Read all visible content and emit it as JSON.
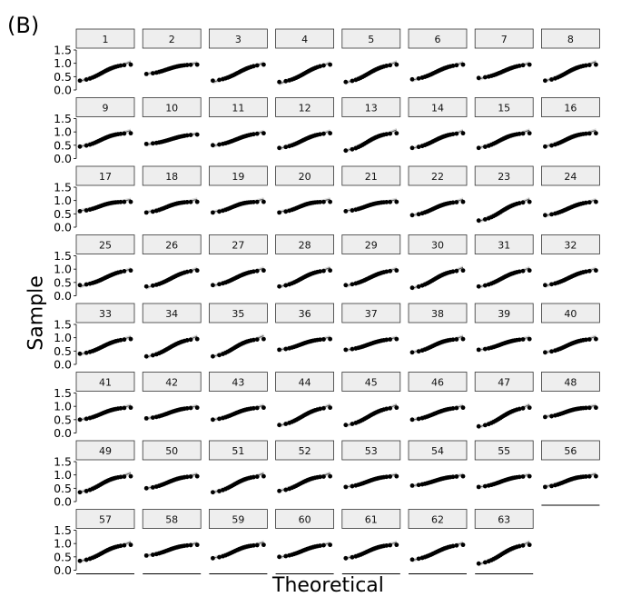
{
  "figure": {
    "panel_label": "(B)",
    "xlabel": "Theoretical",
    "ylabel": "Sample"
  },
  "chart_data": {
    "type": "scatter",
    "subtype": "faceted normal Q-Q plots with fitted reference line and confidence band",
    "facets": [
      "1",
      "2",
      "3",
      "4",
      "5",
      "6",
      "7",
      "8",
      "9",
      "10",
      "11",
      "12",
      "13",
      "14",
      "15",
      "16",
      "17",
      "18",
      "19",
      "20",
      "21",
      "22",
      "23",
      "24",
      "25",
      "26",
      "27",
      "28",
      "29",
      "30",
      "31",
      "32",
      "33",
      "34",
      "35",
      "36",
      "37",
      "38",
      "39",
      "40",
      "41",
      "42",
      "43",
      "44",
      "45",
      "46",
      "47",
      "48",
      "49",
      "50",
      "51",
      "52",
      "53",
      "54",
      "55",
      "56",
      "57",
      "58",
      "59",
      "60",
      "61",
      "62",
      "63"
    ],
    "xlabel": "Theoretical",
    "ylabel": "Sample",
    "ylim": [
      0.0,
      1.5
    ],
    "yticks": [
      0.0,
      0.5,
      1.0,
      1.5
    ],
    "ytick_labels": [
      "0.0",
      "0.5",
      "1.0",
      "1.5"
    ],
    "layout": {
      "columns": 8,
      "rows": 8
    },
    "point_color": "#000000",
    "line_color": "#555555",
    "band_color": "#bbbbbb",
    "strip_color": "#eeeeee",
    "series": [
      {
        "lo": 0.35,
        "hi": 0.95,
        "shape": 0.4
      },
      {
        "lo": 0.6,
        "hi": 0.95,
        "shape": 0.6
      },
      {
        "lo": 0.35,
        "hi": 0.95,
        "shape": 0.0
      },
      {
        "lo": 0.3,
        "hi": 0.95,
        "shape": 0.0
      },
      {
        "lo": 0.3,
        "hi": 0.95,
        "shape": 0.3
      },
      {
        "lo": 0.4,
        "hi": 0.95,
        "shape": 0.2
      },
      {
        "lo": 0.45,
        "hi": 0.95,
        "shape": 0.1
      },
      {
        "lo": 0.35,
        "hi": 0.95,
        "shape": 0.5
      },
      {
        "lo": 0.45,
        "hi": 0.95,
        "shape": 0.6
      },
      {
        "lo": 0.55,
        "hi": 0.9,
        "shape": 0.1
      },
      {
        "lo": 0.5,
        "hi": 0.95,
        "shape": 0.2
      },
      {
        "lo": 0.4,
        "hi": 0.95,
        "shape": 0.3
      },
      {
        "lo": 0.3,
        "hi": 0.95,
        "shape": 0.5
      },
      {
        "lo": 0.4,
        "hi": 0.95,
        "shape": 0.4
      },
      {
        "lo": 0.4,
        "hi": 0.95,
        "shape": 0.6
      },
      {
        "lo": 0.45,
        "hi": 0.95,
        "shape": 0.7
      },
      {
        "lo": 0.6,
        "hi": 0.95,
        "shape": 0.9
      },
      {
        "lo": 0.55,
        "hi": 0.95,
        "shape": 0.8
      },
      {
        "lo": 0.55,
        "hi": 0.95,
        "shape": 0.9
      },
      {
        "lo": 0.55,
        "hi": 0.95,
        "shape": 0.9
      },
      {
        "lo": 0.6,
        "hi": 0.95,
        "shape": 0.8
      },
      {
        "lo": 0.45,
        "hi": 0.95,
        "shape": 0.5
      },
      {
        "lo": 0.25,
        "hi": 0.95,
        "shape": 0.3
      },
      {
        "lo": 0.45,
        "hi": 0.95,
        "shape": 0.3
      },
      {
        "lo": 0.4,
        "hi": 0.95,
        "shape": 0.0
      },
      {
        "lo": 0.35,
        "hi": 0.95,
        "shape": 0.1
      },
      {
        "lo": 0.4,
        "hi": 0.95,
        "shape": 0.3
      },
      {
        "lo": 0.35,
        "hi": 0.95,
        "shape": 0.4
      },
      {
        "lo": 0.4,
        "hi": 0.95,
        "shape": 0.2
      },
      {
        "lo": 0.3,
        "hi": 0.95,
        "shape": 0.4
      },
      {
        "lo": 0.35,
        "hi": 0.95,
        "shape": 0.3
      },
      {
        "lo": 0.4,
        "hi": 0.95,
        "shape": 0.2
      },
      {
        "lo": 0.4,
        "hi": 0.95,
        "shape": 0.3
      },
      {
        "lo": 0.3,
        "hi": 0.95,
        "shape": 0.3
      },
      {
        "lo": 0.3,
        "hi": 0.95,
        "shape": 0.5
      },
      {
        "lo": 0.55,
        "hi": 0.95,
        "shape": 0.5
      },
      {
        "lo": 0.55,
        "hi": 0.95,
        "shape": 0.3
      },
      {
        "lo": 0.45,
        "hi": 0.95,
        "shape": 0.6
      },
      {
        "lo": 0.55,
        "hi": 0.95,
        "shape": 0.4
      },
      {
        "lo": 0.45,
        "hi": 0.95,
        "shape": 0.5
      },
      {
        "lo": 0.5,
        "hi": 0.95,
        "shape": 0.5
      },
      {
        "lo": 0.55,
        "hi": 0.95,
        "shape": 0.4
      },
      {
        "lo": 0.5,
        "hi": 0.95,
        "shape": 0.5
      },
      {
        "lo": 0.3,
        "hi": 0.95,
        "shape": 0.3
      },
      {
        "lo": 0.3,
        "hi": 0.95,
        "shape": 0.3
      },
      {
        "lo": 0.5,
        "hi": 0.95,
        "shape": 0.4
      },
      {
        "lo": 0.25,
        "hi": 0.95,
        "shape": 0.3
      },
      {
        "lo": 0.6,
        "hi": 0.95,
        "shape": 0.8
      },
      {
        "lo": 0.35,
        "hi": 0.95,
        "shape": 0.6
      },
      {
        "lo": 0.5,
        "hi": 0.95,
        "shape": 0.5
      },
      {
        "lo": 0.35,
        "hi": 0.95,
        "shape": 0.5
      },
      {
        "lo": 0.4,
        "hi": 0.95,
        "shape": 0.6
      },
      {
        "lo": 0.55,
        "hi": 0.95,
        "shape": 0.5
      },
      {
        "lo": 0.6,
        "hi": 0.95,
        "shape": 0.4
      },
      {
        "lo": 0.55,
        "hi": 0.95,
        "shape": 0.4
      },
      {
        "lo": 0.55,
        "hi": 0.95,
        "shape": 0.8
      },
      {
        "lo": 0.35,
        "hi": 0.95,
        "shape": 0.4
      },
      {
        "lo": 0.55,
        "hi": 0.95,
        "shape": 0.5
      },
      {
        "lo": 0.45,
        "hi": 0.95,
        "shape": 0.6
      },
      {
        "lo": 0.5,
        "hi": 0.95,
        "shape": 0.3
      },
      {
        "lo": 0.45,
        "hi": 0.95,
        "shape": 0.5
      },
      {
        "lo": 0.4,
        "hi": 0.95,
        "shape": 0.2
      },
      {
        "lo": 0.25,
        "hi": 0.95,
        "shape": 0.3
      }
    ]
  }
}
